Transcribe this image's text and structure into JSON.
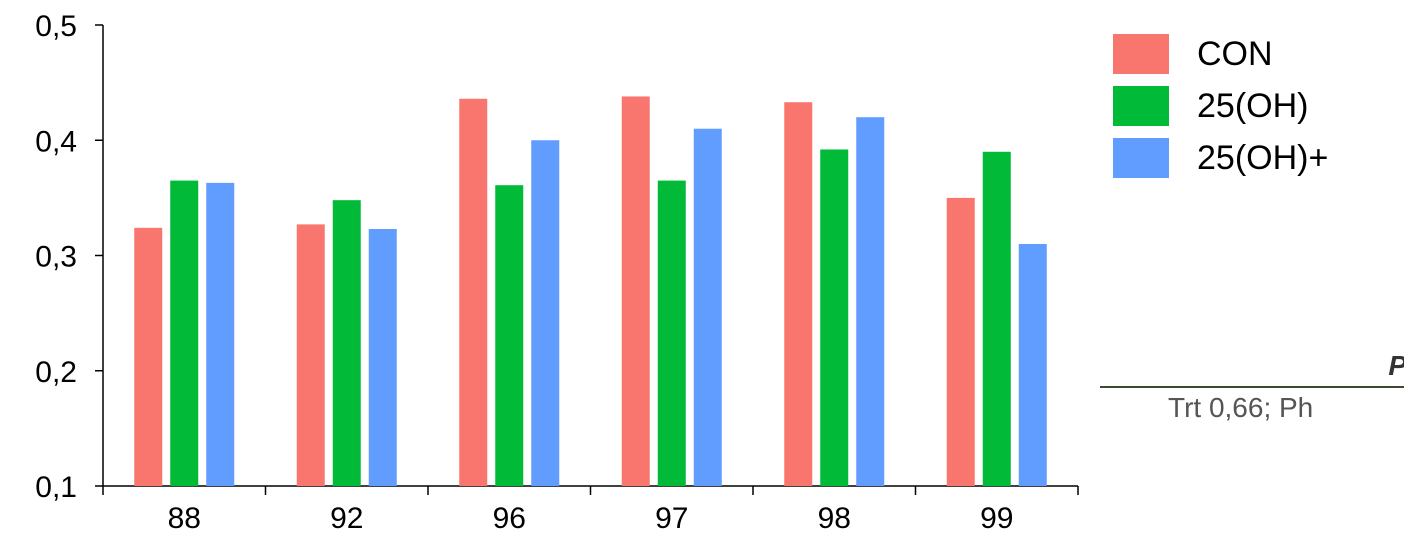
{
  "chart_data": {
    "type": "bar",
    "categories": [
      "88",
      "92",
      "96",
      "97",
      "98",
      "99"
    ],
    "series": [
      {
        "name": "CON",
        "color": "#f8766d",
        "values": [
          0.324,
          0.327,
          0.436,
          0.438,
          0.433,
          0.35
        ]
      },
      {
        "name": "25(OH)",
        "color": "#00ba38",
        "values": [
          0.365,
          0.348,
          0.361,
          0.365,
          0.392,
          0.39
        ]
      },
      {
        "name": "25(OH)+",
        "color": "#619cff",
        "values": [
          0.363,
          0.323,
          0.4,
          0.41,
          0.42,
          0.31
        ]
      }
    ],
    "ylim": [
      0.1,
      0.5
    ],
    "yticks": [
      "0,1",
      "0,2",
      "0,3",
      "0,4",
      "0,5"
    ],
    "xlabel": "",
    "ylabel": "",
    "legend_position": "right",
    "grid": false
  },
  "annotation": {
    "header": "P-v",
    "text": "Trt 0,66; Ph"
  }
}
